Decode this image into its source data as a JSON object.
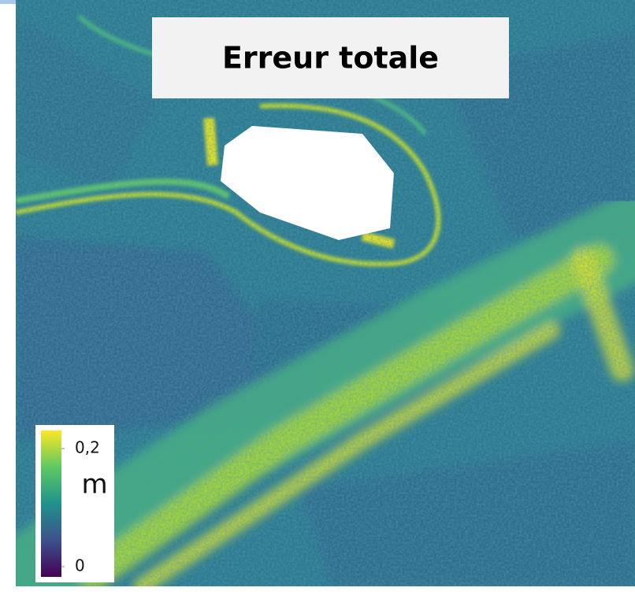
{
  "title": "Erreur totale",
  "colorbar": {
    "unit": "m",
    "lim": [
      0,
      0.2
    ],
    "ticks": [
      {
        "value": 0,
        "label": "0"
      },
      {
        "value": 0.2,
        "label": "0,2"
      }
    ]
  }
}
